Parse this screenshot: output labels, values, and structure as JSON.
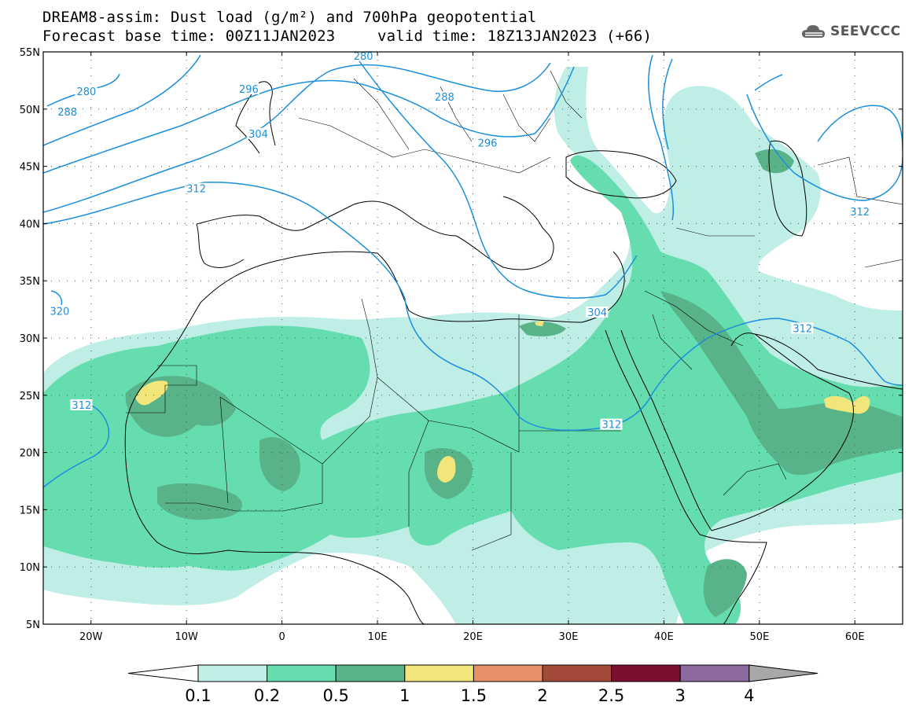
{
  "header": {
    "title_line1": "DREAM8-assim: Dust load (g/m²) and 700hPa geopotential",
    "title_line2_base": "Forecast base time: 00Z11JAN2023",
    "title_line2_valid": "valid time: 18Z13JAN2023 (+66)",
    "logo_text": "SEEVCCC",
    "logo_icon": "cloud-icon"
  },
  "axes": {
    "lat_labels": [
      "55N",
      "50N",
      "45N",
      "40N",
      "35N",
      "30N",
      "25N",
      "20N",
      "15N",
      "10N",
      "5N"
    ],
    "lat_values": [
      55,
      50,
      45,
      40,
      35,
      30,
      25,
      20,
      15,
      10,
      5
    ],
    "lon_labels": [
      "20W",
      "10W",
      "0",
      "10E",
      "20E",
      "30E",
      "40E",
      "50E",
      "60E"
    ],
    "lon_values": [
      -20,
      -10,
      0,
      10,
      20,
      30,
      40,
      50,
      60
    ],
    "lon_range": [
      -25,
      65
    ],
    "lat_range": [
      5,
      55
    ]
  },
  "contour_labels": [
    {
      "text": "280",
      "lon": -21.5,
      "lat": 51.5
    },
    {
      "text": "288",
      "lon": -23.5,
      "lat": 49.7
    },
    {
      "text": "296",
      "lon": -4.5,
      "lat": 51.7
    },
    {
      "text": "304",
      "lon": -3.5,
      "lat": 47.8
    },
    {
      "text": "312",
      "lon": -10.0,
      "lat": 43.0
    },
    {
      "text": "280",
      "lon": 7.5,
      "lat": 54.6
    },
    {
      "text": "288",
      "lon": 16.0,
      "lat": 51.0
    },
    {
      "text": "296",
      "lon": 20.5,
      "lat": 47.0
    },
    {
      "text": "312",
      "lon": 59.5,
      "lat": 41.0
    },
    {
      "text": "320",
      "lon": -24.3,
      "lat": 32.3
    },
    {
      "text": "304",
      "lon": 32.0,
      "lat": 32.2
    },
    {
      "text": "312",
      "lon": 53.5,
      "lat": 30.8
    },
    {
      "text": "312",
      "lon": -22.0,
      "lat": 24.1
    },
    {
      "text": "312",
      "lon": 33.5,
      "lat": 22.4
    }
  ],
  "legend": {
    "colors": [
      "#ffffff",
      "#bfeee6",
      "#66ddaf",
      "#58b389",
      "#f2e67a",
      "#e89068",
      "#a34a3a",
      "#7c0e2e",
      "#8b6aa0",
      "#a8a8a8"
    ],
    "labels": [
      "0.1",
      "0.2",
      "0.5",
      "1",
      "1.5",
      "2",
      "2.5",
      "3",
      "4"
    ]
  }
}
